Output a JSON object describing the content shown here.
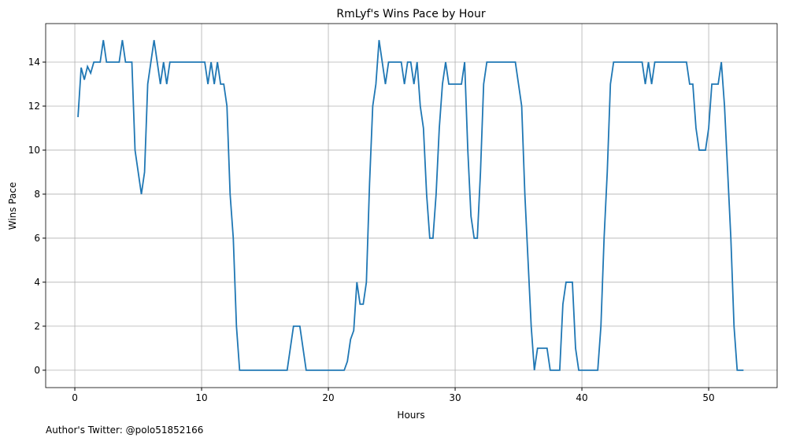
{
  "chart_data": {
    "type": "line",
    "title": "RmLyf's Wins Pace by Hour",
    "x_label": "Hours",
    "y_label": "Wins Pace",
    "footnote": "Author's Twitter: @polo51852166",
    "x": [
      0.25,
      0.5,
      0.75,
      1,
      1.25,
      1.5,
      2,
      2.25,
      2.5,
      3.5,
      3.75,
      4,
      4.5,
      4.75,
      5.25,
      5.5,
      5.75,
      6.25,
      6.75,
      7,
      7.25,
      7.5,
      10.25,
      10.5,
      10.75,
      11,
      11.25,
      11.5,
      11.75,
      12,
      12.25,
      12.5,
      12.75,
      13,
      16.75,
      17.25,
      17.75,
      18.25,
      21.25,
      21.5,
      21.75,
      22,
      22.25,
      22.5,
      22.75,
      23,
      23.25,
      23.5,
      23.75,
      24,
      24.25,
      24.5,
      24.75,
      25.75,
      26,
      26.25,
      26.5,
      26.75,
      27,
      27.25,
      27.5,
      27.75,
      28,
      28.25,
      28.5,
      28.75,
      29,
      29.25,
      29.5,
      30.5,
      30.75,
      31,
      31.25,
      31.5,
      31.75,
      32,
      32.25,
      32.5,
      34.75,
      35,
      35.25,
      35.5,
      35.75,
      36,
      36.25,
      36.5,
      37.25,
      37.5,
      38.25,
      38.5,
      38.75,
      39.25,
      39.5,
      39.75,
      41.25,
      41.5,
      41.75,
      42,
      42.25,
      42.5,
      44.75,
      45,
      45.25,
      45.5,
      45.75,
      48.25,
      48.5,
      48.75,
      49,
      49.25,
      49.75,
      50,
      50.25,
      50.75,
      51,
      51.25,
      51.5,
      51.75,
      52,
      52.25,
      52.75
    ],
    "series": [
      {
        "name": "Wins Pace",
        "color": "#1f77b4",
        "values": [
          11.5,
          13.75,
          13.2,
          13.8,
          13.5,
          14,
          14,
          15,
          14,
          14,
          15,
          14,
          14,
          10,
          8,
          9,
          13,
          15,
          13,
          14,
          13,
          14,
          14,
          13,
          14,
          13,
          14,
          13,
          13,
          12,
          8,
          6,
          2,
          0,
          0,
          2,
          2,
          0,
          0,
          0.4,
          1.4,
          1.8,
          4,
          3,
          3,
          4,
          8.5,
          12,
          13,
          15,
          14,
          13,
          14,
          14,
          13,
          14,
          14,
          13,
          14,
          12,
          11,
          8,
          6,
          6,
          8,
          11,
          13,
          14,
          13,
          13,
          14,
          10,
          7,
          6,
          6,
          9,
          13,
          14,
          14,
          13,
          12,
          8,
          5,
          2,
          0,
          1,
          1,
          0,
          0,
          3,
          4,
          4,
          1,
          0,
          0,
          2,
          6,
          9,
          13,
          14,
          14,
          13,
          14,
          13,
          14,
          14,
          13,
          13,
          11,
          10,
          10,
          11,
          13,
          13,
          14,
          12,
          9,
          6,
          2,
          0,
          0
        ]
      }
    ],
    "xlim": [
      -2.3,
      55.4
    ],
    "ylim": [
      -0.79,
      15.75
    ],
    "xticks": [
      0,
      10,
      20,
      30,
      40,
      50
    ],
    "yticks": [
      0,
      2,
      4,
      6,
      8,
      10,
      12,
      14
    ],
    "grid": true
  }
}
